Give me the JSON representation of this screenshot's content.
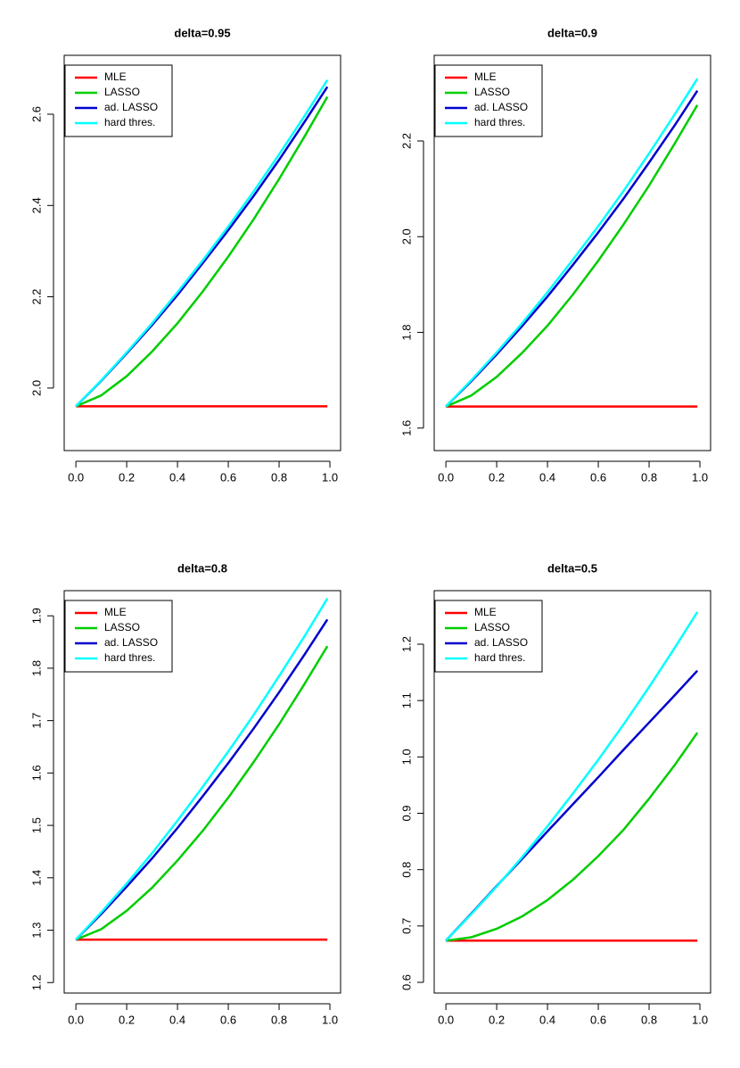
{
  "chart_data": [
    {
      "type": "line",
      "title": "delta=0.95",
      "x": [
        0,
        0.1,
        0.2,
        0.3,
        0.4,
        0.5,
        0.6,
        0.7,
        0.8,
        0.9,
        0.99
      ],
      "series": [
        {
          "name": "MLE",
          "color": "#ff0000",
          "values": [
            1.96,
            1.96,
            1.96,
            1.96,
            1.96,
            1.96,
            1.96,
            1.96,
            1.96,
            1.96,
            1.96
          ]
        },
        {
          "name": "LASSO",
          "color": "#00cd00",
          "values": [
            1.96,
            1.984,
            2.026,
            2.08,
            2.142,
            2.212,
            2.288,
            2.37,
            2.458,
            2.551,
            2.638
          ]
        },
        {
          "name": "ad. LASSO",
          "color": "#0000cd",
          "values": [
            1.96,
            2.016,
            2.076,
            2.138,
            2.204,
            2.274,
            2.346,
            2.421,
            2.5,
            2.583,
            2.66
          ]
        },
        {
          "name": "hard thres.",
          "color": "#00ffff",
          "values": [
            1.96,
            2.017,
            2.078,
            2.142,
            2.21,
            2.28,
            2.354,
            2.431,
            2.512,
            2.596,
            2.675
          ]
        }
      ],
      "xlim": [
        -0.046,
        1.042
      ],
      "xticks": [
        {
          "value": 0,
          "label": "0.0"
        },
        0.2,
        0.4,
        0.6,
        0.8,
        {
          "value": 1,
          "label": "1.0"
        }
      ],
      "ylim": [
        1.863,
        2.729
      ],
      "yticks": [
        {
          "value": 2,
          "label": "2.0"
        },
        2.2,
        2.4,
        2.6
      ],
      "legend": "top-left"
    },
    {
      "type": "line",
      "title": "delta=0.9",
      "x": [
        0,
        0.1,
        0.2,
        0.3,
        0.4,
        0.5,
        0.6,
        0.7,
        0.8,
        0.9,
        0.99
      ],
      "series": [
        {
          "name": "MLE",
          "color": "#ff0000",
          "values": [
            1.645,
            1.645,
            1.645,
            1.645,
            1.645,
            1.645,
            1.645,
            1.645,
            1.645,
            1.645,
            1.645
          ]
        },
        {
          "name": "LASSO",
          "color": "#00cd00",
          "values": [
            1.645,
            1.668,
            1.707,
            1.757,
            1.814,
            1.879,
            1.95,
            2.026,
            2.107,
            2.194,
            2.275
          ]
        },
        {
          "name": "ad. LASSO",
          "color": "#0000cd",
          "values": [
            1.645,
            1.698,
            1.754,
            1.813,
            1.875,
            1.941,
            2.009,
            2.08,
            2.155,
            2.232,
            2.305
          ]
        },
        {
          "name": "hard thres.",
          "color": "#00ffff",
          "values": [
            1.645,
            1.7,
            1.758,
            1.819,
            1.884,
            1.952,
            2.022,
            2.096,
            2.174,
            2.255,
            2.33
          ]
        }
      ],
      "xlim": [
        -0.046,
        1.042
      ],
      "xticks": [
        {
          "value": 0,
          "label": "0.0"
        },
        0.2,
        0.4,
        0.6,
        0.8,
        {
          "value": 1,
          "label": "1.0"
        }
      ],
      "ylim": [
        1.553,
        2.379
      ],
      "yticks": [
        1.6,
        1.8,
        {
          "value": 2,
          "label": "2.0"
        },
        2.2
      ],
      "legend": "top-left"
    },
    {
      "type": "line",
      "title": "delta=0.8",
      "x": [
        0,
        0.1,
        0.2,
        0.3,
        0.4,
        0.5,
        0.6,
        0.7,
        0.8,
        0.9,
        0.99
      ],
      "series": [
        {
          "name": "MLE",
          "color": "#ff0000",
          "values": [
            1.282,
            1.282,
            1.282,
            1.282,
            1.282,
            1.282,
            1.282,
            1.282,
            1.282,
            1.282,
            1.282
          ]
        },
        {
          "name": "LASSO",
          "color": "#00cd00",
          "values": [
            1.282,
            1.302,
            1.337,
            1.381,
            1.433,
            1.49,
            1.553,
            1.621,
            1.693,
            1.77,
            1.842
          ]
        },
        {
          "name": "ad. LASSO",
          "color": "#0000cd",
          "values": [
            1.282,
            1.331,
            1.383,
            1.437,
            1.495,
            1.556,
            1.619,
            1.685,
            1.754,
            1.826,
            1.893
          ]
        },
        {
          "name": "hard thres.",
          "color": "#00ffff",
          "values": [
            1.282,
            1.334,
            1.389,
            1.447,
            1.509,
            1.574,
            1.641,
            1.711,
            1.785,
            1.861,
            1.933
          ]
        }
      ],
      "xlim": [
        -0.046,
        1.042
      ],
      "xticks": [
        {
          "value": 0,
          "label": "0.0"
        },
        0.2,
        0.4,
        0.6,
        0.8,
        {
          "value": 1,
          "label": "1.0"
        }
      ],
      "ylim": [
        1.18,
        1.948
      ],
      "yticks": [
        1.2,
        1.3,
        1.4,
        1.5,
        1.6,
        1.7,
        1.8,
        1.9
      ],
      "legend": "top-left"
    },
    {
      "type": "line",
      "title": "delta=0.5",
      "x": [
        0,
        0.1,
        0.2,
        0.3,
        0.4,
        0.5,
        0.6,
        0.7,
        0.8,
        0.9,
        0.99
      ],
      "series": [
        {
          "name": "MLE",
          "color": "#ff0000",
          "values": [
            0.674,
            0.674,
            0.674,
            0.674,
            0.674,
            0.674,
            0.674,
            0.674,
            0.674,
            0.674,
            0.674
          ]
        },
        {
          "name": "LASSO",
          "color": "#00cd00",
          "values": [
            0.674,
            0.68,
            0.695,
            0.717,
            0.746,
            0.782,
            0.824,
            0.871,
            0.926,
            0.985,
            1.043
          ]
        },
        {
          "name": "ad. LASSO",
          "color": "#0000cd",
          "values": [
            0.674,
            0.722,
            0.771,
            0.819,
            0.868,
            0.916,
            0.964,
            1.013,
            1.061,
            1.109,
            1.153
          ]
        },
        {
          "name": "hard thres.",
          "color": "#00ffff",
          "values": [
            0.674,
            0.721,
            0.77,
            0.822,
            0.877,
            0.935,
            0.995,
            1.058,
            1.124,
            1.193,
            1.257
          ]
        }
      ],
      "xlim": [
        -0.046,
        1.042
      ],
      "xticks": [
        {
          "value": 0,
          "label": "0.0"
        },
        0.2,
        0.4,
        0.6,
        0.8,
        {
          "value": 1,
          "label": "1.0"
        }
      ],
      "ylim": [
        0.581,
        1.295
      ],
      "yticks": [
        0.6,
        0.7,
        0.8,
        0.9,
        {
          "value": 1,
          "label": "1.0"
        },
        1.1,
        1.2
      ],
      "legend": "top-left"
    }
  ]
}
